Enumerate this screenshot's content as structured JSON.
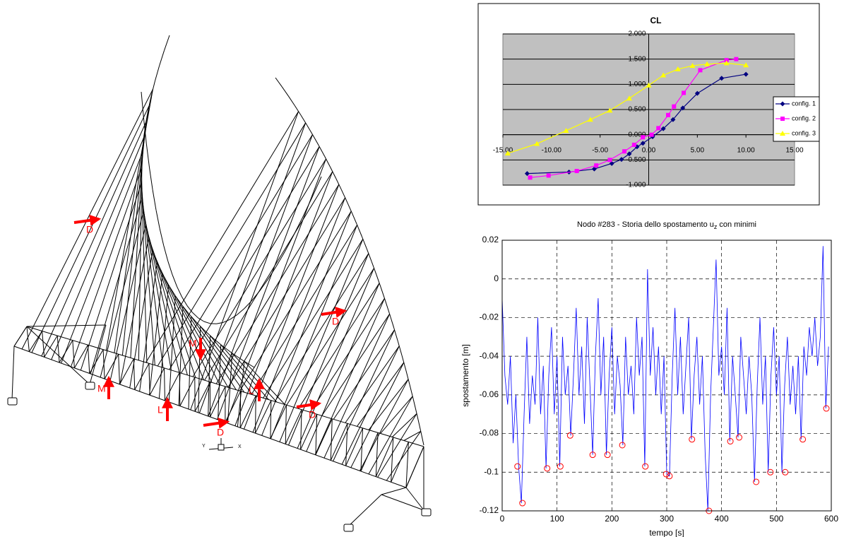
{
  "diagram": {
    "labels": [
      "D",
      "D",
      "M",
      "M",
      "L",
      "L",
      "D",
      "D"
    ],
    "axis_labels": [
      "Y",
      "X"
    ]
  },
  "chart_data": [
    {
      "type": "line",
      "title": "CL",
      "xlim": [
        -15,
        15
      ],
      "xticks": [
        {
          "value": -15,
          "label": "-15.00"
        },
        {
          "value": -10,
          "label": "-10.00"
        },
        {
          "value": -5,
          "label": "-5.00"
        },
        {
          "value": 0,
          "label": "0.00"
        },
        {
          "value": 5,
          "label": "5.00"
        },
        {
          "value": 10,
          "label": "10.00"
        },
        {
          "value": 15,
          "label": "15.00"
        }
      ],
      "ylim": [
        -1,
        2
      ],
      "yticks": [
        {
          "value": -1,
          "label": "-1.000"
        },
        {
          "value": -0.5,
          "label": "-0.500"
        },
        {
          "value": 0,
          "label": "0.000"
        },
        {
          "value": 0.5,
          "label": "0.500"
        },
        {
          "value": 1,
          "label": "1.000"
        },
        {
          "value": 1.5,
          "label": "1.500"
        },
        {
          "value": 2,
          "label": "2.000"
        }
      ],
      "grid": true,
      "legend": "right",
      "series": [
        {
          "name": "config. 1",
          "color": "#000080",
          "marker": "diamond",
          "x": [
            -12.5,
            -8.2,
            -5.6,
            -3.8,
            -2.8,
            -2.0,
            -1.2,
            -0.6,
            0.4,
            1.5,
            2.5,
            3.5,
            5.0,
            7.5,
            10.0
          ],
          "values": [
            -0.77,
            -0.74,
            -0.68,
            -0.57,
            -0.49,
            -0.38,
            -0.24,
            -0.17,
            -0.04,
            0.12,
            0.3,
            0.53,
            0.82,
            1.12,
            1.2
          ]
        },
        {
          "name": "config. 2",
          "color": "#ff00ff",
          "marker": "square",
          "x": [
            -12.2,
            -10.3,
            -7.4,
            -5.4,
            -4.0,
            -2.5,
            -1.5,
            -0.6,
            0.3,
            1.0,
            2.0,
            2.6,
            3.6,
            5.3,
            8.0,
            9.0
          ],
          "values": [
            -0.85,
            -0.81,
            -0.72,
            -0.61,
            -0.5,
            -0.33,
            -0.2,
            -0.05,
            0.0,
            0.13,
            0.39,
            0.56,
            0.83,
            1.28,
            1.48,
            1.5
          ]
        },
        {
          "name": "config. 3",
          "color": "#ffff00",
          "marker": "triangle",
          "x": [
            -14.5,
            -11.5,
            -8.5,
            -6.0,
            -4.0,
            -2.0,
            0.0,
            1.5,
            3.0,
            4.5,
            6.0,
            8.0,
            10.0
          ],
          "values": [
            -0.37,
            -0.18,
            0.08,
            0.3,
            0.48,
            0.72,
            0.98,
            1.18,
            1.3,
            1.37,
            1.4,
            1.42,
            1.38
          ]
        }
      ]
    },
    {
      "type": "line",
      "title": "Nodo #283 - Storia dello spostamento u",
      "title_subscript": "z",
      "title_suffix": " con minimi",
      "xlabel": "tempo [s]",
      "ylabel": "spostamento [m]",
      "xlim": [
        0,
        600
      ],
      "xticks": [
        0,
        100,
        200,
        300,
        400,
        500,
        600
      ],
      "ylim": [
        -0.12,
        0.02
      ],
      "yticks": [
        -0.12,
        -0.1,
        -0.08,
        -0.06,
        -0.04,
        -0.02,
        0,
        0.02
      ],
      "grid": true,
      "series": [
        {
          "color": "#0000ff",
          "marker": "none",
          "x": [
            0,
            5,
            10,
            15,
            20,
            25,
            30,
            35,
            40,
            45,
            50,
            55,
            60,
            65,
            70,
            75,
            80,
            85,
            90,
            95,
            100,
            105,
            110,
            115,
            120,
            125,
            130,
            135,
            140,
            145,
            150,
            155,
            160,
            165,
            170,
            175,
            180,
            185,
            190,
            195,
            200,
            205,
            210,
            215,
            220,
            225,
            230,
            235,
            240,
            245,
            250,
            255,
            260,
            265,
            270,
            275,
            280,
            285,
            290,
            295,
            300,
            305,
            310,
            315,
            320,
            325,
            330,
            335,
            340,
            345,
            350,
            355,
            360,
            365,
            370,
            375,
            380,
            385,
            390,
            395,
            400,
            405,
            410,
            415,
            420,
            425,
            430,
            435,
            440,
            445,
            450,
            455,
            460,
            465,
            470,
            475,
            480,
            485,
            490,
            495,
            500,
            505,
            510,
            515,
            520,
            525,
            530,
            535,
            540,
            545,
            550,
            555,
            560,
            565,
            570,
            575,
            580,
            585,
            590,
            595
          ],
          "values": [
            -0.01,
            -0.05,
            -0.065,
            -0.04,
            -0.085,
            -0.06,
            -0.097,
            -0.116,
            -0.07,
            -0.03,
            -0.075,
            -0.05,
            -0.065,
            -0.02,
            -0.07,
            -0.045,
            -0.098,
            -0.05,
            -0.025,
            -0.07,
            -0.04,
            -0.097,
            -0.03,
            -0.06,
            -0.045,
            -0.081,
            -0.05,
            -0.015,
            -0.06,
            -0.035,
            -0.075,
            -0.02,
            -0.055,
            -0.091,
            -0.04,
            -0.01,
            -0.06,
            -0.03,
            -0.091,
            -0.05,
            -0.025,
            -0.07,
            -0.04,
            -0.055,
            -0.086,
            -0.03,
            -0.06,
            -0.045,
            -0.07,
            -0.02,
            -0.05,
            -0.03,
            -0.097,
            0.005,
            -0.05,
            -0.025,
            -0.06,
            -0.035,
            -0.07,
            -0.04,
            -0.101,
            -0.102,
            -0.05,
            -0.015,
            -0.06,
            -0.03,
            -0.07,
            -0.045,
            -0.02,
            -0.083,
            -0.05,
            -0.03,
            -0.065,
            -0.04,
            -0.09,
            -0.12,
            -0.06,
            -0.025,
            0.01,
            -0.05,
            -0.035,
            -0.06,
            -0.015,
            -0.084,
            -0.04,
            -0.06,
            -0.082,
            -0.03,
            -0.05,
            -0.07,
            -0.04,
            -0.06,
            -0.105,
            -0.055,
            -0.02,
            -0.065,
            -0.04,
            -0.1,
            -0.05,
            -0.025,
            -0.06,
            -0.04,
            -0.1,
            -0.055,
            -0.03,
            -0.065,
            -0.045,
            -0.07,
            -0.04,
            -0.083,
            -0.035,
            -0.05,
            -0.025,
            -0.04,
            -0.02,
            -0.045,
            -0.03,
            0.017,
            -0.067,
            -0.035
          ]
        },
        {
          "color": "#ff0000",
          "marker": "circle",
          "line": false,
          "x": [
            28,
            37,
            82,
            106,
            124,
            165,
            192,
            219,
            261,
            299,
            305,
            346,
            377,
            416,
            432,
            463,
            489,
            516,
            548,
            591
          ],
          "values": [
            -0.097,
            -0.116,
            -0.098,
            -0.097,
            -0.081,
            -0.091,
            -0.091,
            -0.086,
            -0.097,
            -0.101,
            -0.102,
            -0.083,
            -0.12,
            -0.084,
            -0.082,
            -0.105,
            -0.1,
            -0.1,
            -0.083,
            -0.067
          ]
        }
      ]
    }
  ]
}
